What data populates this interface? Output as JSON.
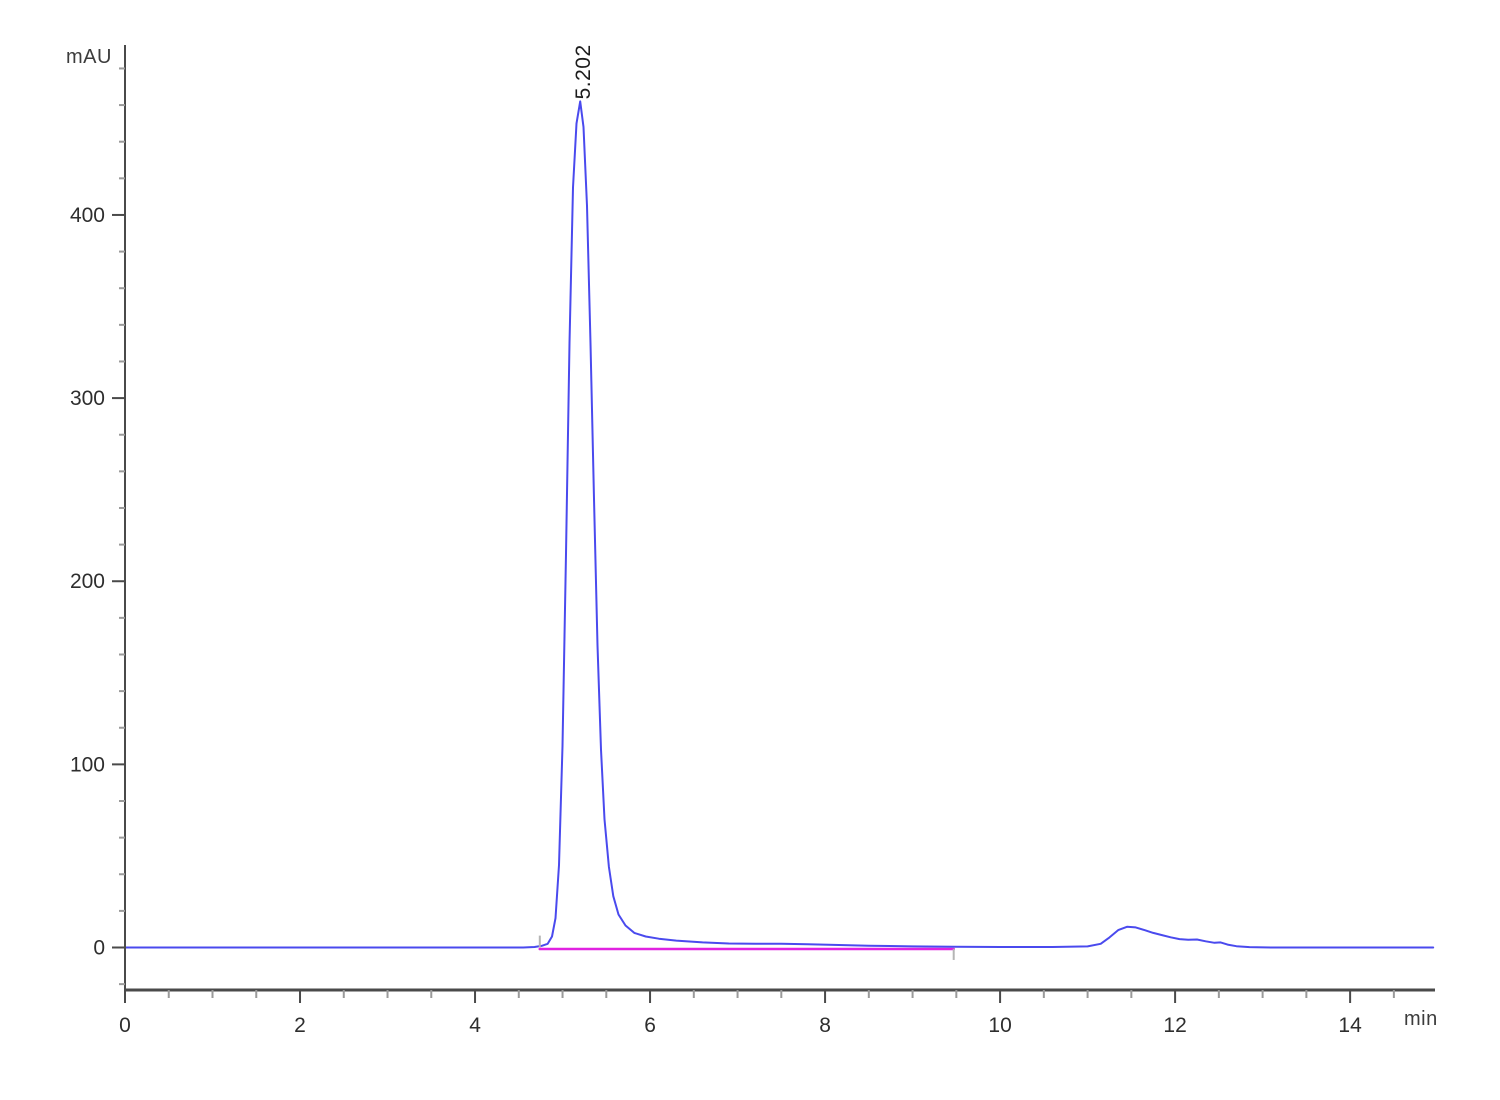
{
  "chart_data": {
    "type": "line",
    "title": "",
    "xlabel": "min",
    "ylabel": "mAU",
    "xlim": [
      0,
      14.97
    ],
    "ylim": [
      -23.2,
      492.8
    ],
    "grid": false,
    "legend": "none",
    "x_axis": {
      "major_ticks": [
        0,
        2,
        4,
        6,
        8,
        10,
        12,
        14
      ],
      "minor_start": 0,
      "minor_end": 14.5,
      "minor_step": 0.5
    },
    "y_axis": {
      "major_ticks": [
        0,
        100,
        200,
        300,
        400
      ],
      "minor_start": -20,
      "minor_end": 480,
      "minor_step": 20
    },
    "colors": {
      "signal": "#4a4aee",
      "baseline": "#e022e0",
      "axis": "#4a4a4a",
      "minor_tick": "#9a9a9a",
      "marker": "#b5b5b5"
    },
    "peak_labels": [
      {
        "x": 5.202,
        "y": 462,
        "text": "5.202"
      }
    ],
    "integration_markers": [
      {
        "x": 4.74,
        "y_from": 0,
        "y_to": 6.5
      },
      {
        "x": 9.47,
        "y_from": -0.7,
        "y_to": -6.8
      }
    ],
    "series": [
      {
        "name": "integration-baseline",
        "color": "#e022e0",
        "width": 2.6,
        "points": [
          [
            4.74,
            -0.8
          ],
          [
            9.47,
            -0.8
          ]
        ]
      },
      {
        "name": "detector-signal",
        "color": "#4a4aee",
        "width": 2,
        "points": [
          [
            0,
            0
          ],
          [
            0.3,
            0
          ],
          [
            0.6,
            0
          ],
          [
            1,
            0
          ],
          [
            1.5,
            0
          ],
          [
            2,
            0
          ],
          [
            2.5,
            0
          ],
          [
            3,
            0
          ],
          [
            3.5,
            0
          ],
          [
            4,
            0
          ],
          [
            4.3,
            0
          ],
          [
            4.55,
            0
          ],
          [
            4.68,
            0.3
          ],
          [
            4.76,
            0.9
          ],
          [
            4.83,
            2
          ],
          [
            4.88,
            6
          ],
          [
            4.92,
            16
          ],
          [
            4.96,
            45
          ],
          [
            5.0,
            110
          ],
          [
            5.04,
            215
          ],
          [
            5.08,
            330
          ],
          [
            5.12,
            415
          ],
          [
            5.16,
            450
          ],
          [
            5.202,
            462
          ],
          [
            5.24,
            448
          ],
          [
            5.28,
            405
          ],
          [
            5.32,
            330
          ],
          [
            5.36,
            245
          ],
          [
            5.4,
            165
          ],
          [
            5.44,
            108
          ],
          [
            5.48,
            70
          ],
          [
            5.53,
            44
          ],
          [
            5.58,
            28
          ],
          [
            5.64,
            18
          ],
          [
            5.72,
            12
          ],
          [
            5.82,
            8
          ],
          [
            5.95,
            6
          ],
          [
            6.1,
            4.8
          ],
          [
            6.3,
            3.8
          ],
          [
            6.6,
            2.8
          ],
          [
            6.9,
            2.2
          ],
          [
            7.2,
            2
          ],
          [
            7.5,
            2
          ],
          [
            7.8,
            1.8
          ],
          [
            8.1,
            1.4
          ],
          [
            8.5,
            1
          ],
          [
            9.0,
            0.6
          ],
          [
            9.47,
            0.4
          ],
          [
            10.0,
            0.3
          ],
          [
            10.6,
            0.3
          ],
          [
            11.0,
            0.6
          ],
          [
            11.15,
            2
          ],
          [
            11.25,
            5.5
          ],
          [
            11.35,
            9.5
          ],
          [
            11.45,
            11.3
          ],
          [
            11.55,
            11
          ],
          [
            11.65,
            9.5
          ],
          [
            11.75,
            8
          ],
          [
            11.85,
            6.8
          ],
          [
            11.95,
            5.6
          ],
          [
            12.05,
            4.6
          ],
          [
            12.15,
            4.2
          ],
          [
            12.25,
            4.4
          ],
          [
            12.35,
            3.4
          ],
          [
            12.45,
            2.6
          ],
          [
            12.52,
            2.8
          ],
          [
            12.6,
            1.6
          ],
          [
            12.7,
            0.7
          ],
          [
            12.85,
            0.2
          ],
          [
            13.1,
            0
          ],
          [
            13.5,
            0
          ],
          [
            14.0,
            0
          ],
          [
            14.5,
            0
          ],
          [
            14.95,
            0
          ]
        ]
      }
    ]
  }
}
